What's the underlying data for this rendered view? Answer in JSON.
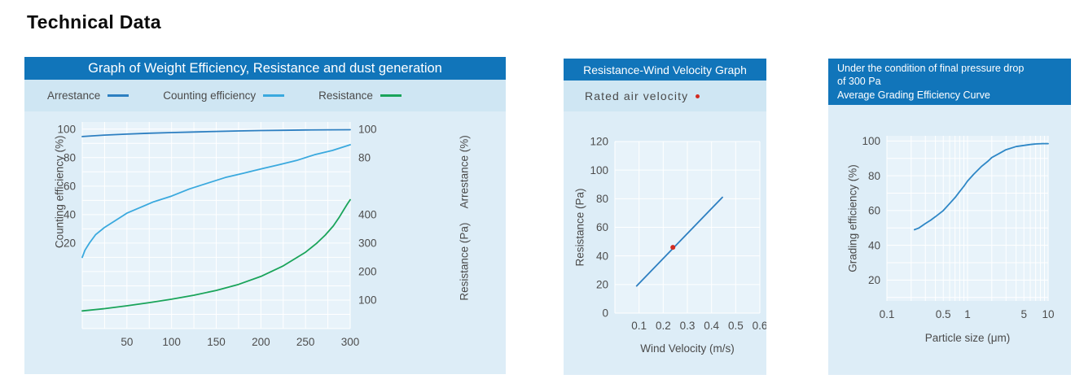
{
  "page": {
    "title": "Technical Data"
  },
  "colors": {
    "title_bar": "#1175ba",
    "title_text": "#ffffff",
    "legend_band": "#cfe6f3",
    "panel_body": "#ddedf7",
    "plot_bg": "#e8f3fa",
    "grid": "#ffffff",
    "tick_text": "#4d4d4d"
  },
  "chart_data": [
    {
      "id": "weight-efficiency",
      "type": "line",
      "title": "Graph of Weight Efficiency, Resistance and dust generation",
      "legend": [
        {
          "label": "Arrestance",
          "color": "#2d7fc1",
          "swatch": "line"
        },
        {
          "label": "Counting efficiency",
          "color": "#3aa9de",
          "swatch": "line"
        },
        {
          "label": "Resistance",
          "color": "#1aa45a",
          "swatch": "line"
        }
      ],
      "x_axis": {
        "label": "",
        "min": 0,
        "max": 300,
        "grid_step": 25,
        "ticks": [
          50,
          100,
          150,
          200,
          250,
          300
        ]
      },
      "y_left": {
        "label": "Counting efficiency (%)",
        "min": -40,
        "max": 105,
        "grid_step": 10,
        "ticks": [
          20,
          40,
          60,
          80,
          100
        ]
      },
      "y_right": {
        "label_pct": "Arrestance (%)",
        "pct_ticks": [
          80,
          100
        ],
        "label_pa": "Resistance (Pa)",
        "pa_min": 0,
        "pa_max": 725,
        "pa_ticks": [
          100,
          200,
          300,
          400
        ]
      },
      "series": [
        {
          "name": "Arrestance",
          "unit": "%",
          "axis": "pct",
          "color": "#2d7fc1",
          "points": [
            [
              0,
              94.8
            ],
            [
              25,
              95.8
            ],
            [
              50,
              96.5
            ],
            [
              75,
              97.1
            ],
            [
              100,
              97.6
            ],
            [
              125,
              98.0
            ],
            [
              150,
              98.4
            ],
            [
              175,
              98.7
            ],
            [
              200,
              99.0
            ],
            [
              225,
              99.2
            ],
            [
              250,
              99.4
            ],
            [
              275,
              99.5
            ],
            [
              300,
              99.6
            ]
          ]
        },
        {
          "name": "Counting efficiency",
          "unit": "%",
          "axis": "pct",
          "color": "#3aa9de",
          "points": [
            [
              0,
              10
            ],
            [
              3,
              15
            ],
            [
              8,
              20
            ],
            [
              15,
              26
            ],
            [
              25,
              31
            ],
            [
              40,
              37
            ],
            [
              50,
              41
            ],
            [
              65,
              45
            ],
            [
              80,
              49
            ],
            [
              100,
              53
            ],
            [
              120,
              58
            ],
            [
              140,
              62
            ],
            [
              160,
              66
            ],
            [
              180,
              69
            ],
            [
              200,
              72
            ],
            [
              220,
              75
            ],
            [
              240,
              78
            ],
            [
              260,
              82
            ],
            [
              280,
              85
            ],
            [
              300,
              89
            ]
          ]
        },
        {
          "name": "Resistance",
          "unit": "Pa",
          "axis": "pa",
          "color": "#1aa45a",
          "points": [
            [
              0,
              62
            ],
            [
              25,
              70
            ],
            [
              50,
              80
            ],
            [
              75,
              91
            ],
            [
              100,
              103
            ],
            [
              125,
              117
            ],
            [
              150,
              134
            ],
            [
              175,
              155
            ],
            [
              200,
              183
            ],
            [
              225,
              220
            ],
            [
              250,
              268
            ],
            [
              262,
              298
            ],
            [
              272,
              328
            ],
            [
              281,
              360
            ],
            [
              288,
              392
            ],
            [
              293,
              418
            ],
            [
              297,
              438
            ],
            [
              300,
              452
            ]
          ]
        }
      ]
    },
    {
      "id": "resistance-wind-velocity",
      "type": "line",
      "title": "Resistance-Wind Velocity Graph",
      "legend": [
        {
          "label": "Rated air velocity",
          "color": "#d22b20",
          "swatch": "dot"
        }
      ],
      "x_axis": {
        "label": "Wind Velocity (m/s)",
        "min": 0,
        "max": 0.6,
        "grid_step": 0.1,
        "ticks": [
          0.1,
          0.2,
          0.3,
          0.4,
          0.5,
          0.6
        ]
      },
      "y_left": {
        "label": "Resistance (Pa)",
        "min": 0,
        "max": 120,
        "grid_step": 20,
        "ticks": [
          0,
          20,
          40,
          60,
          80,
          100,
          120
        ]
      },
      "series": [
        {
          "name": "Resistance vs wind velocity",
          "unit": "Pa",
          "axis": "pct",
          "color": "#2d7fc1",
          "points": [
            [
              0.09,
              19
            ],
            [
              0.445,
              81
            ]
          ]
        },
        {
          "name": "Rated air velocity point",
          "unit": "Pa",
          "axis": "pct",
          "color": "#d22b20",
          "marker": "dot",
          "points": [
            [
              0.24,
              46
            ]
          ]
        }
      ]
    },
    {
      "id": "grading-efficiency",
      "type": "line",
      "title": "Under the condition of final pressure drop\nof 300 Pa\nAverage Grading Efficiency Curve",
      "legend": [],
      "x_axis": {
        "label": "Particle size (μm)",
        "scale": "log",
        "min": 0.1,
        "max": 10,
        "grid_lines": [
          0.1,
          0.2,
          0.3,
          0.4,
          0.5,
          0.6,
          0.7,
          0.8,
          0.9,
          1,
          2,
          3,
          4,
          5,
          6,
          7,
          8,
          9,
          10
        ],
        "ticks": [
          0.1,
          0.5,
          1,
          5,
          10
        ]
      },
      "y_left": {
        "label": "Grading efficiency (%)",
        "min": 8,
        "max": 103,
        "grid_step": 10,
        "ticks": [
          20,
          40,
          60,
          80,
          100
        ]
      },
      "series": [
        {
          "name": "Grading efficiency",
          "unit": "%",
          "axis": "pct",
          "color": "#2e87c6",
          "points": [
            [
              0.22,
              49
            ],
            [
              0.25,
              50
            ],
            [
              0.3,
              52.5
            ],
            [
              0.35,
              54.5
            ],
            [
              0.4,
              56.5
            ],
            [
              0.5,
              60
            ],
            [
              0.6,
              64
            ],
            [
              0.7,
              67.5
            ],
            [
              0.8,
              71
            ],
            [
              0.9,
              74
            ],
            [
              1,
              77
            ],
            [
              1.2,
              81
            ],
            [
              1.5,
              85.5
            ],
            [
              1.8,
              88.5
            ],
            [
              2,
              90.5
            ],
            [
              2.5,
              93
            ],
            [
              3,
              95
            ],
            [
              4,
              96.8
            ],
            [
              5,
              97.5
            ],
            [
              6,
              98
            ],
            [
              7,
              98.3
            ],
            [
              8.5,
              98.5
            ],
            [
              10,
              98.5
            ]
          ]
        }
      ]
    }
  ]
}
